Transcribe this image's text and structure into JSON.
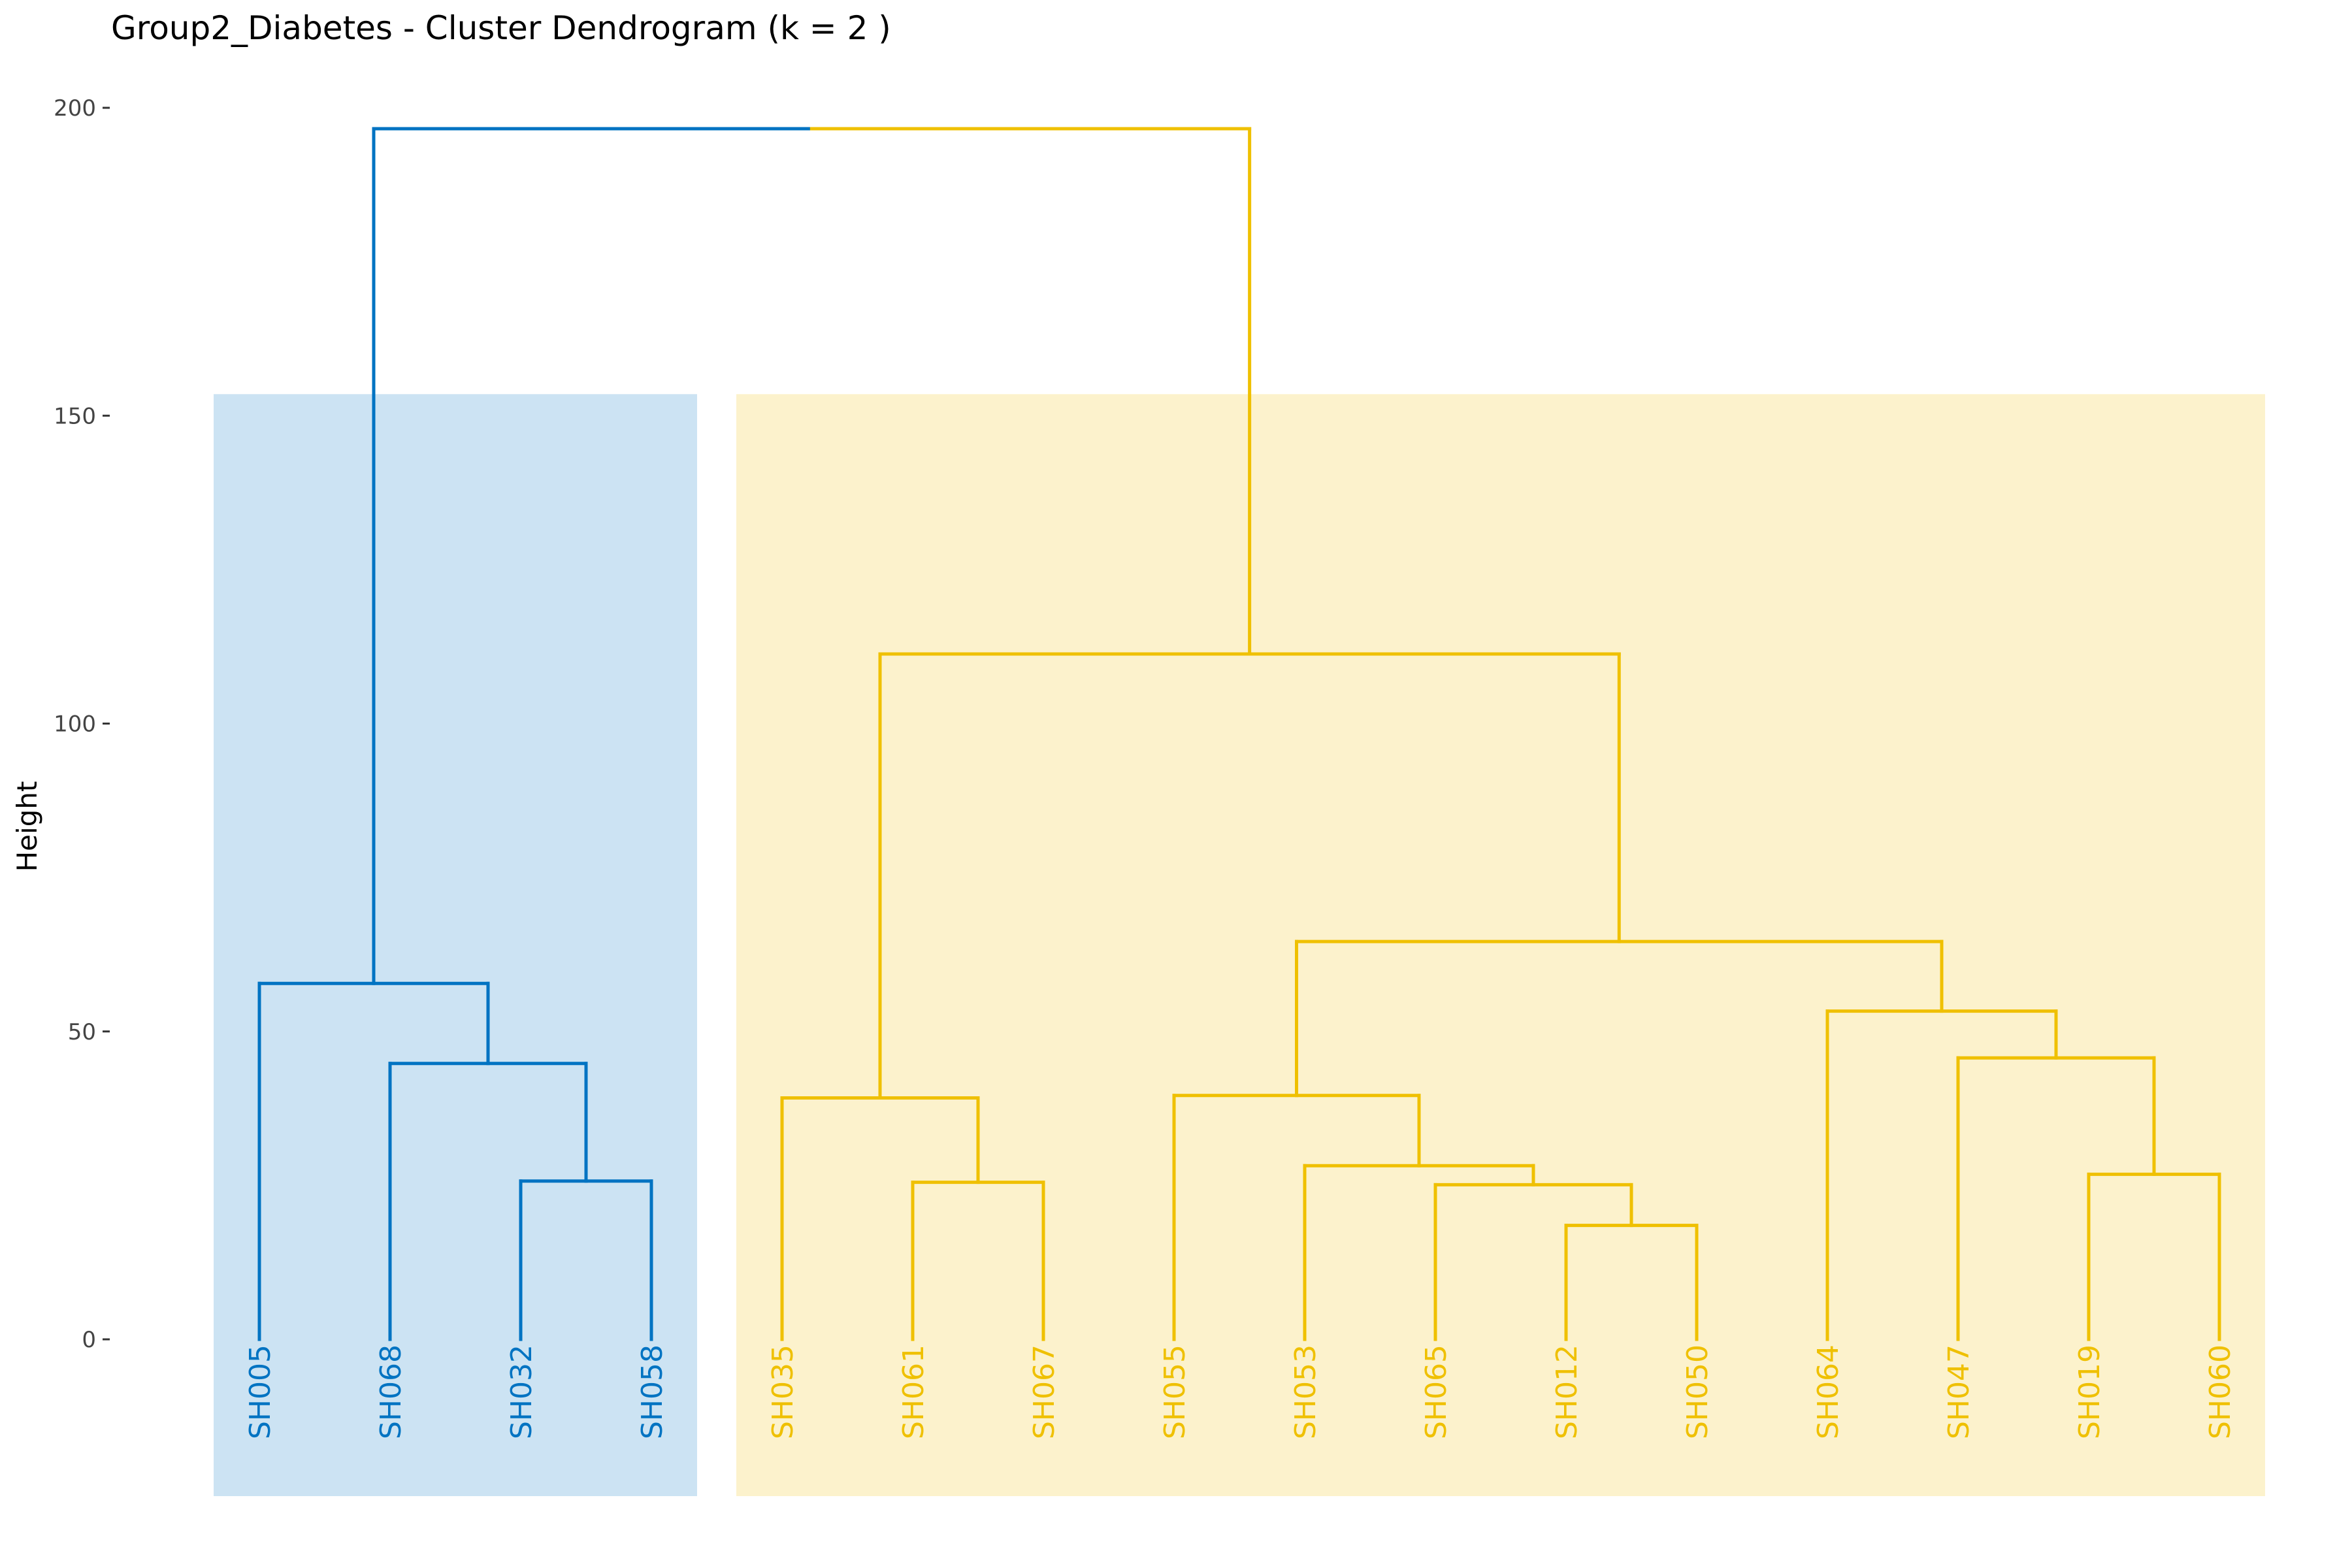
{
  "chart_data": {
    "type": "dendrogram",
    "title": "Group2_Diabetes - Cluster Dendrogram (k = 2 )",
    "ylabel": "Height",
    "xlabel": "",
    "ylim": [
      0,
      200
    ],
    "yticks": [
      0,
      50,
      100,
      150,
      200
    ],
    "grid": false,
    "k": 2,
    "colors": {
      "cluster1": "#0073C2",
      "cluster2": "#EFC000"
    },
    "leaves": [
      {
        "label": "SH005",
        "cluster": 1
      },
      {
        "label": "SH068",
        "cluster": 1
      },
      {
        "label": "SH032",
        "cluster": 1
      },
      {
        "label": "SH058",
        "cluster": 1
      },
      {
        "label": "SH035",
        "cluster": 2
      },
      {
        "label": "SH061",
        "cluster": 2
      },
      {
        "label": "SH067",
        "cluster": 2
      },
      {
        "label": "SH055",
        "cluster": 2
      },
      {
        "label": "SH053",
        "cluster": 2
      },
      {
        "label": "SH065",
        "cluster": 2
      },
      {
        "label": "SH012",
        "cluster": 2
      },
      {
        "label": "SH050",
        "cluster": 2
      },
      {
        "label": "SH064",
        "cluster": 2
      },
      {
        "label": "SH047",
        "cluster": 2
      },
      {
        "label": "SH019",
        "cluster": 2
      },
      {
        "label": "SH060",
        "cluster": 2
      }
    ],
    "merges": [
      {
        "id": "m1",
        "left": "leaf:2",
        "right": "leaf:3",
        "height": 25.7,
        "cluster": 1
      },
      {
        "id": "m2",
        "left": "leaf:1",
        "right": "m1",
        "height": 44.8,
        "cluster": 1
      },
      {
        "id": "m3",
        "left": "leaf:0",
        "right": "m2",
        "height": 57.8,
        "cluster": 1
      },
      {
        "id": "m4",
        "left": "leaf:5",
        "right": "leaf:6",
        "height": 25.5,
        "cluster": 2
      },
      {
        "id": "m5",
        "left": "leaf:4",
        "right": "m4",
        "height": 39.2,
        "cluster": 2
      },
      {
        "id": "m6",
        "left": "leaf:10",
        "right": "leaf:11",
        "height": 18.5,
        "cluster": 2
      },
      {
        "id": "m7",
        "left": "leaf:9",
        "right": "m6",
        "height": 25.1,
        "cluster": 2
      },
      {
        "id": "m8",
        "left": "leaf:8",
        "right": "m7",
        "height": 28.2,
        "cluster": 2
      },
      {
        "id": "m9",
        "left": "leaf:7",
        "right": "m8",
        "height": 39.6,
        "cluster": 2
      },
      {
        "id": "m10",
        "left": "leaf:14",
        "right": "leaf:15",
        "height": 26.8,
        "cluster": 2
      },
      {
        "id": "m11",
        "left": "leaf:13",
        "right": "m10",
        "height": 45.7,
        "cluster": 2
      },
      {
        "id": "m12",
        "left": "leaf:12",
        "right": "m11",
        "height": 53.3,
        "cluster": 2
      },
      {
        "id": "m13",
        "left": "m9",
        "right": "m12",
        "height": 64.6,
        "cluster": 2
      },
      {
        "id": "m14",
        "left": "m5",
        "right": "m13",
        "height": 111.3,
        "cluster": 2
      },
      {
        "id": "m15",
        "left": "m3",
        "right": "m14",
        "height": 196.6,
        "cluster": 0
      }
    ],
    "rect_top_height": 153.5
  }
}
